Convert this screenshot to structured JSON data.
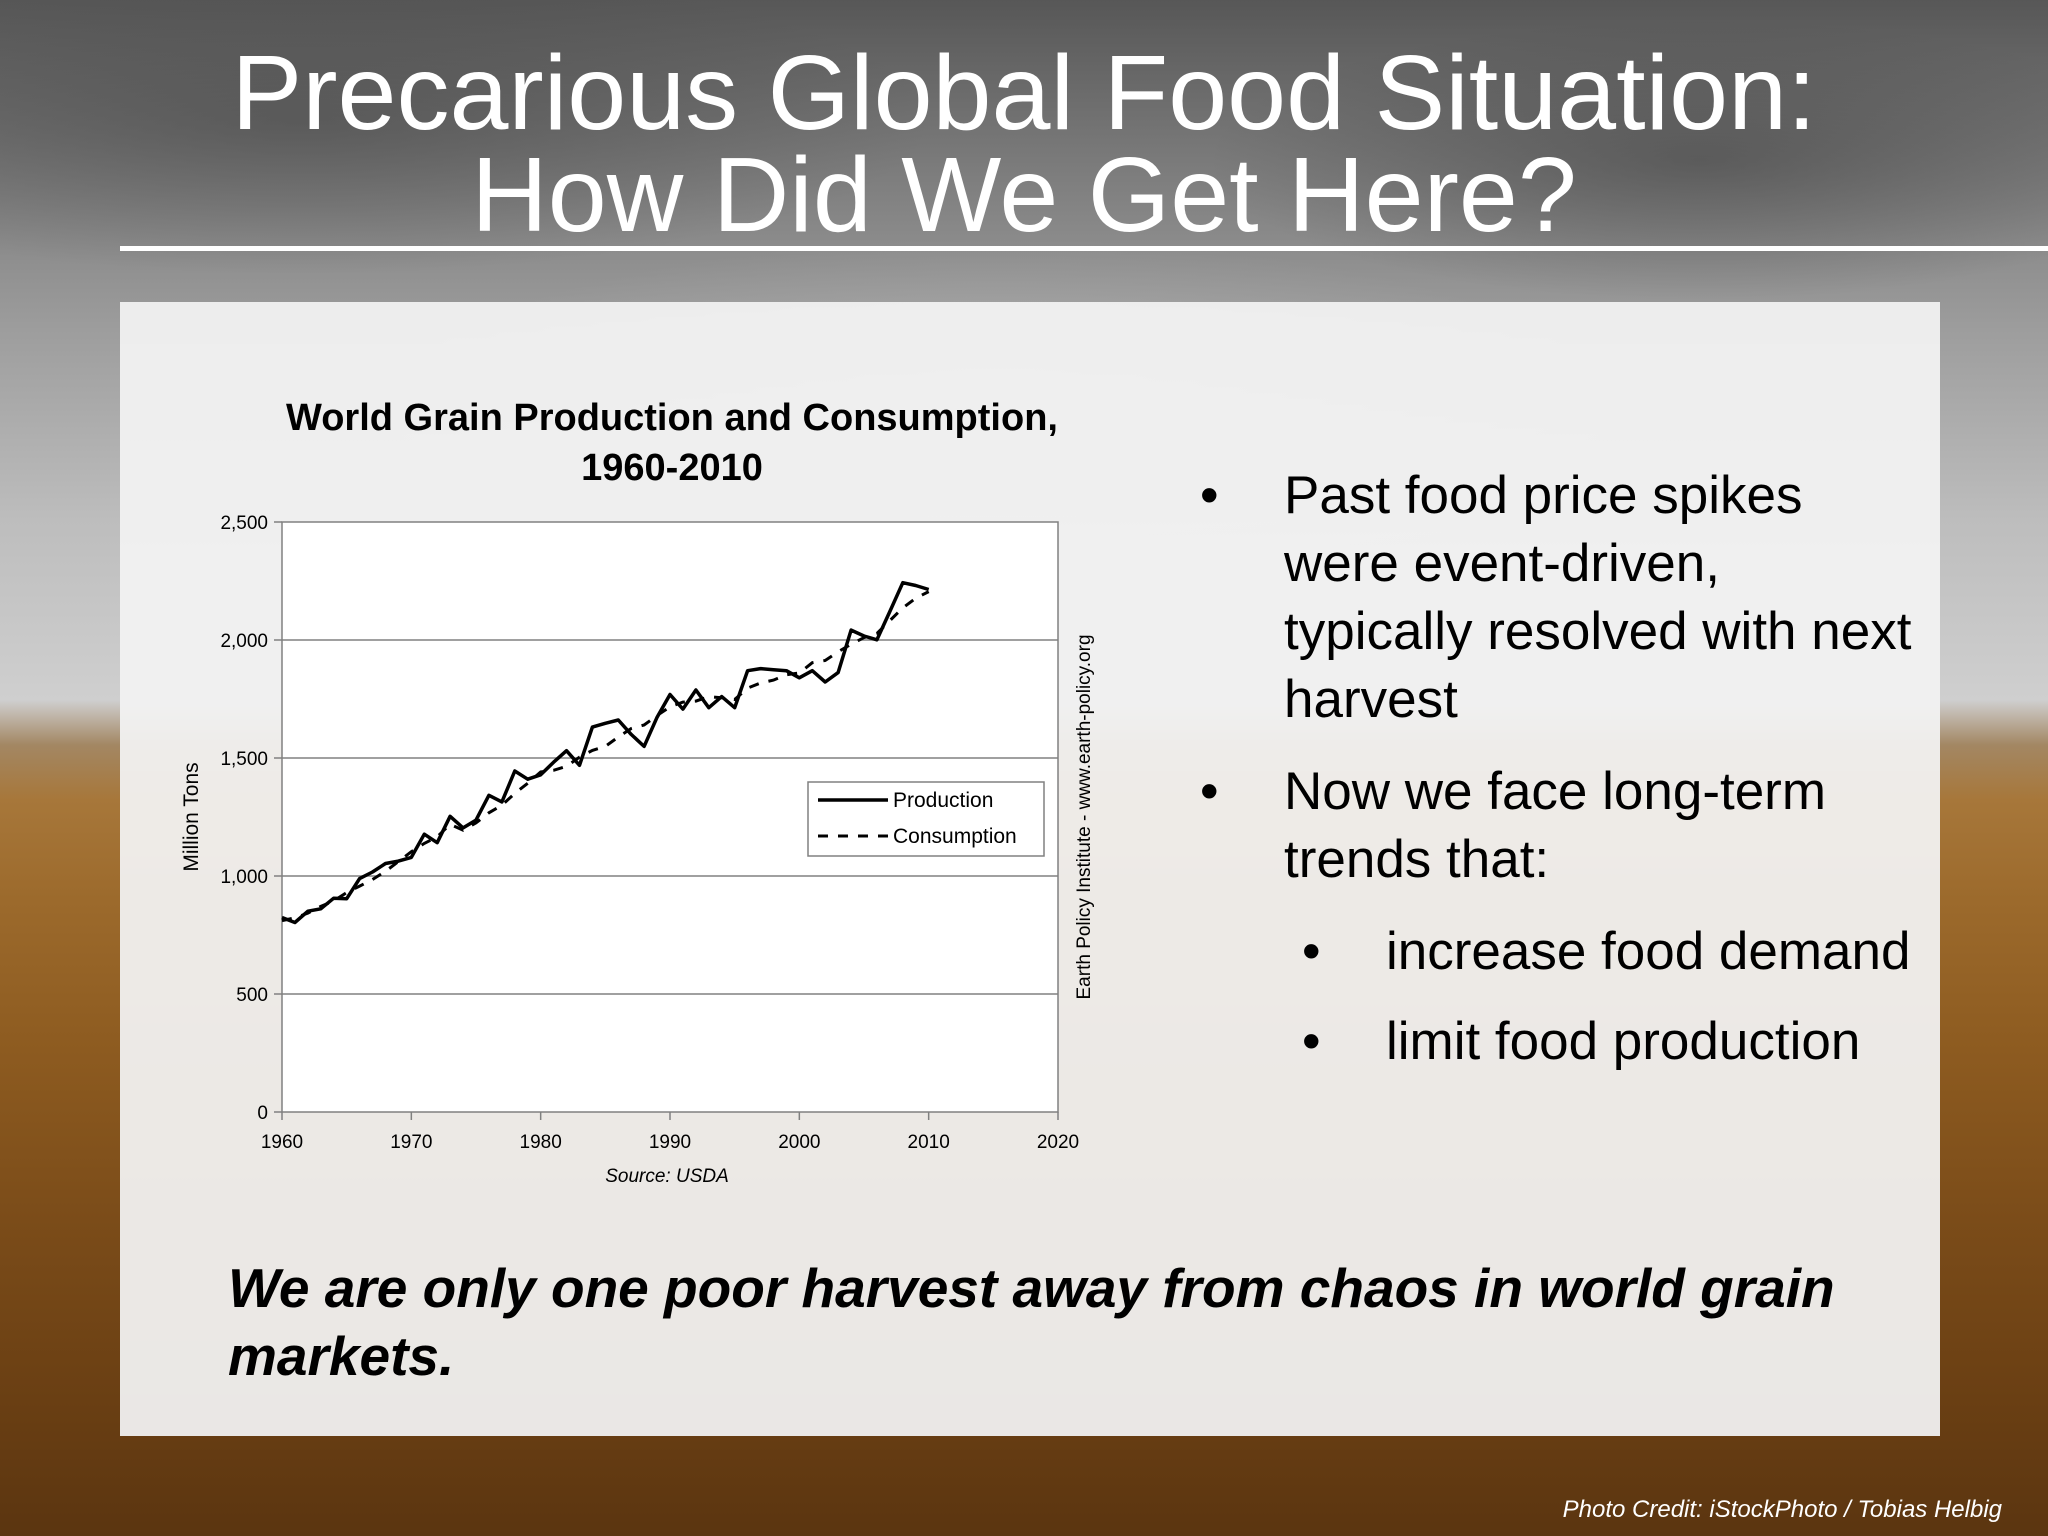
{
  "slide": {
    "title_line1": "Precarious Global Food Situation:",
    "title_line2": "How Did We Get Here?",
    "bullets": [
      {
        "text": "Past food price spikes were event-driven, typically resolved with next harvest"
      },
      {
        "text": "Now we face long-term trends that:"
      }
    ],
    "sub_bullets": [
      {
        "text": "increase food demand"
      },
      {
        "text": "limit food production"
      }
    ],
    "bullet_glyph": "•",
    "statement": "We are only one poor harvest away from chaos in world grain markets.",
    "photo_credit": "Photo Credit: iStockPhoto / Tobias Helbig"
  },
  "chart_data": {
    "type": "line",
    "title_line1": "World Grain Production and Consumption,",
    "title_line2": "1960-2010",
    "ylabel": "Million Tons",
    "source": "Source: USDA",
    "side_note": "Earth Policy Institute - www.earth-policy.org",
    "xlim": [
      1960,
      2020
    ],
    "ylim": [
      0,
      2500
    ],
    "x_ticks": [
      1960,
      1970,
      1980,
      1990,
      2000,
      2010,
      2020
    ],
    "y_ticks": [
      {
        "value": 0,
        "label": "0"
      },
      {
        "value": 500,
        "label": "500"
      },
      {
        "value": 1000,
        "label": "1,000"
      },
      {
        "value": 1500,
        "label": "1,500"
      },
      {
        "value": 2000,
        "label": "2,000"
      },
      {
        "value": 2500,
        "label": "2,500"
      }
    ],
    "grid": "horizontal",
    "legend_position": "right",
    "colors": {
      "line": "#000000",
      "plot_bg": "#ffffff",
      "grid": "#808080"
    },
    "x": [
      1960,
      1961,
      1962,
      1963,
      1964,
      1965,
      1966,
      1967,
      1968,
      1969,
      1970,
      1971,
      1972,
      1973,
      1974,
      1975,
      1976,
      1977,
      1978,
      1979,
      1980,
      1981,
      1982,
      1983,
      1984,
      1985,
      1986,
      1987,
      1988,
      1989,
      1990,
      1991,
      1992,
      1993,
      1994,
      1995,
      1996,
      1997,
      1998,
      1999,
      2000,
      2001,
      2002,
      2003,
      2004,
      2005,
      2006,
      2007,
      2008,
      2009,
      2010
    ],
    "series": [
      {
        "name": "Production",
        "style": "solid",
        "values": [
          824,
          803,
          851,
          861,
          906,
          904,
          989,
          1017,
          1053,
          1063,
          1079,
          1177,
          1141,
          1253,
          1204,
          1237,
          1342,
          1314,
          1445,
          1410,
          1429,
          1482,
          1531,
          1469,
          1631,
          1647,
          1661,
          1600,
          1549,
          1673,
          1769,
          1707,
          1788,
          1713,
          1760,
          1713,
          1870,
          1879,
          1874,
          1870,
          1840,
          1870,
          1822,
          1862,
          2042,
          2017,
          2001,
          2121,
          2243,
          2231,
          2214
        ]
      },
      {
        "name": "Consumption",
        "style": "dashed",
        "values": [
          811,
          823,
          843,
          871,
          894,
          930,
          957,
          985,
          1020,
          1061,
          1103,
          1138,
          1166,
          1219,
          1194,
          1225,
          1268,
          1300,
          1350,
          1393,
          1441,
          1448,
          1465,
          1504,
          1532,
          1549,
          1589,
          1625,
          1640,
          1680,
          1717,
          1737,
          1741,
          1760,
          1755,
          1748,
          1796,
          1818,
          1830,
          1853,
          1860,
          1904,
          1913,
          1950,
          1982,
          2010,
          2028,
          2082,
          2136,
          2177,
          2205
        ]
      }
    ]
  }
}
